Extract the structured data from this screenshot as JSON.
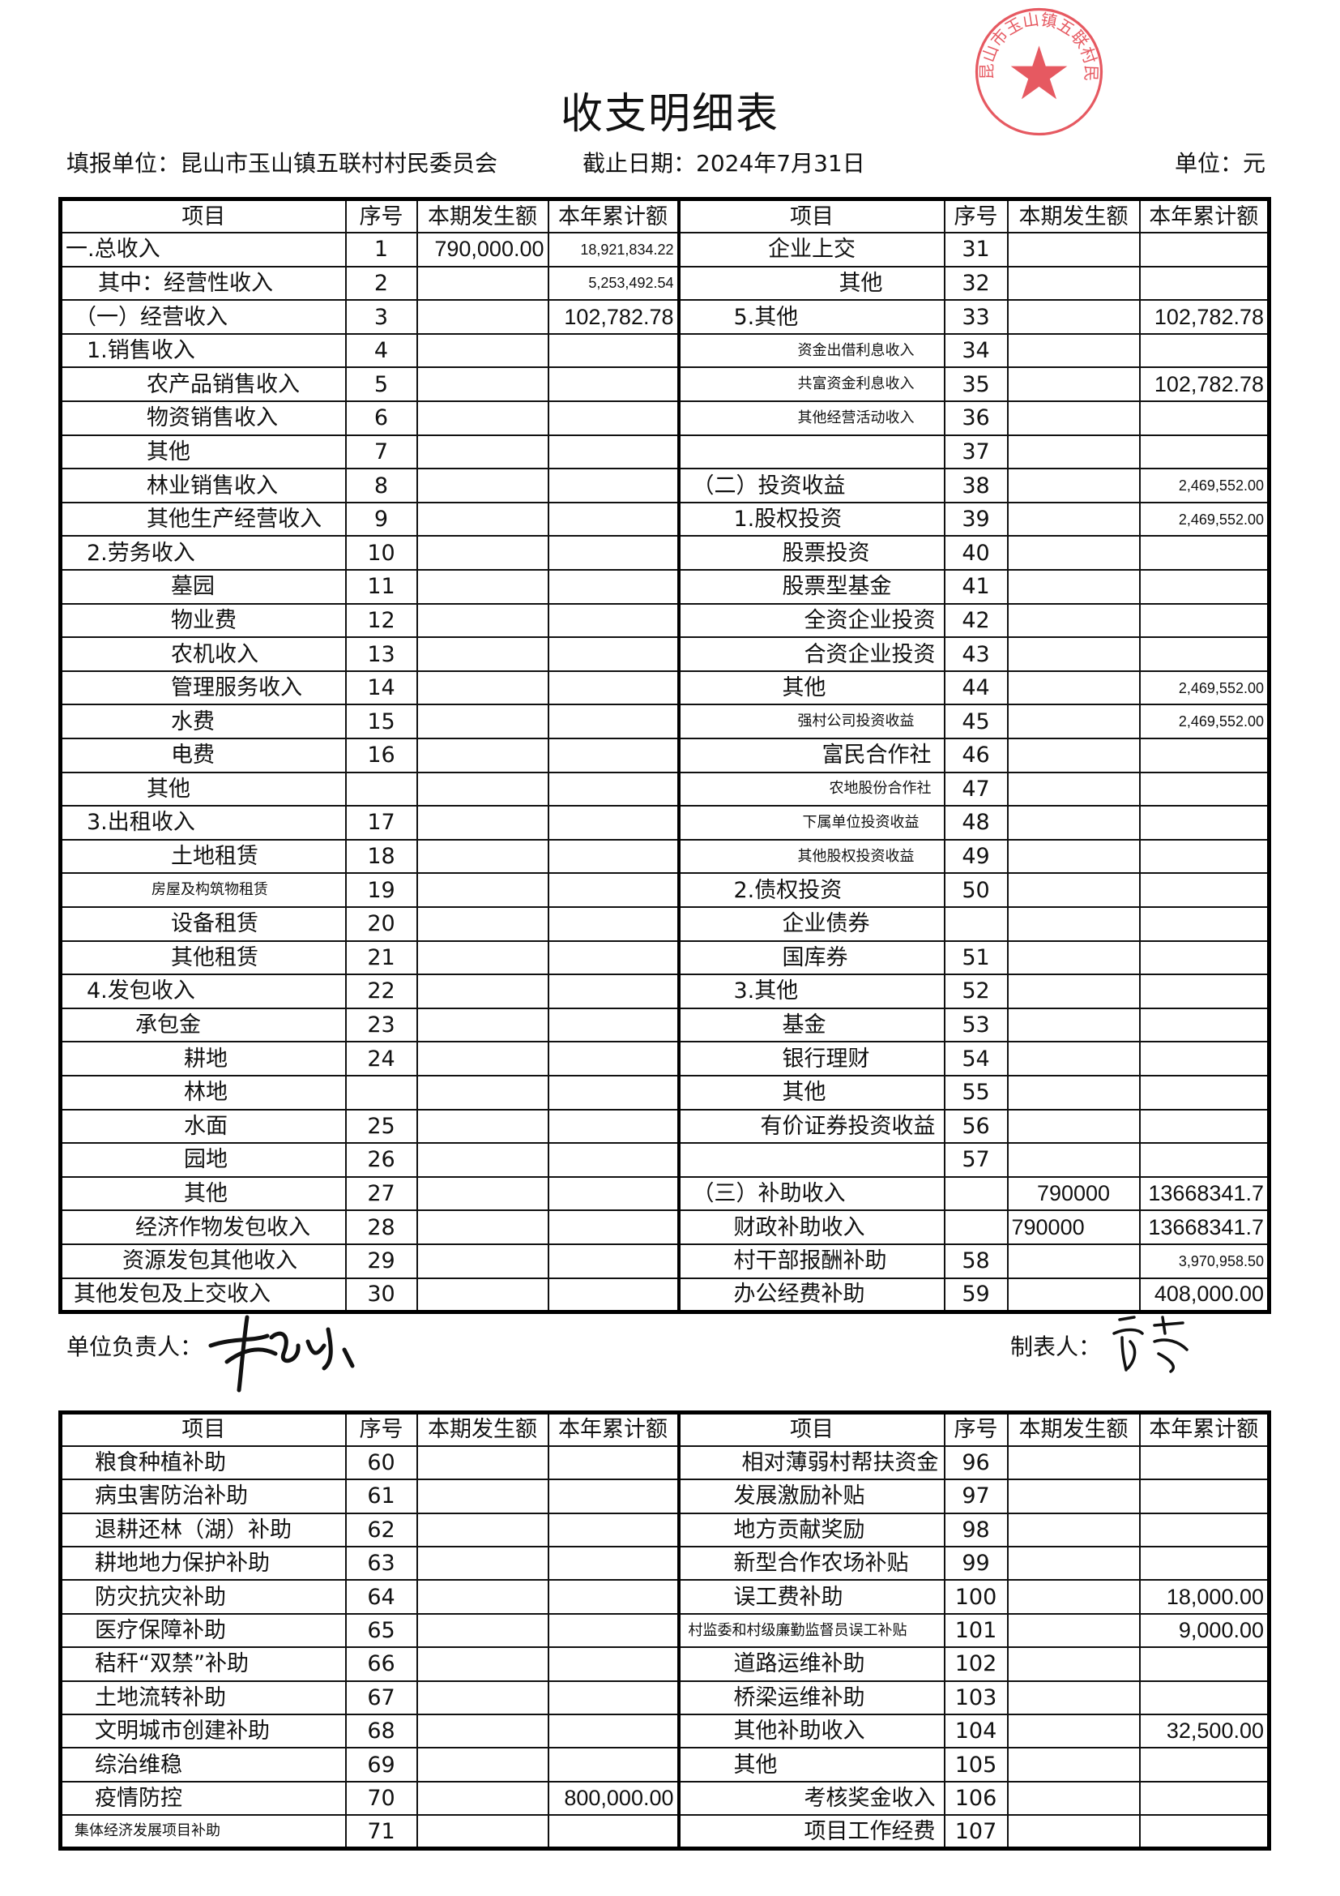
{
  "title": "收支明细表",
  "header": {
    "unit_label": "填报单位：昆山市玉山镇五联村村民委员会",
    "date_label": "截止日期：2024年7月31日",
    "currency_label": "单位：元"
  },
  "columns": [
    "项目",
    "序号",
    "本期发生额",
    "本年累计额"
  ],
  "table1": {
    "left": [
      {
        "item": "一.总收入",
        "no": "1",
        "current": "790,000.00",
        "ytd": "18,921,834.22"
      },
      {
        "item": "其中：经营性收入",
        "no": "2",
        "current": "",
        "ytd": "5,253,492.54"
      },
      {
        "item": "（一）经营收入",
        "no": "3",
        "current": "",
        "ytd": "102,782.78"
      },
      {
        "item": "1.销售收入",
        "no": "4",
        "current": "",
        "ytd": ""
      },
      {
        "item": "农产品销售收入",
        "no": "5",
        "current": "",
        "ytd": ""
      },
      {
        "item": "物资销售收入",
        "no": "6",
        "current": "",
        "ytd": ""
      },
      {
        "item": "其他",
        "no": "7",
        "current": "",
        "ytd": ""
      },
      {
        "item": "林业销售收入",
        "no": "8",
        "current": "",
        "ytd": ""
      },
      {
        "item": "其他生产经营收入",
        "no": "9",
        "current": "",
        "ytd": ""
      },
      {
        "item": "2.劳务收入",
        "no": "10",
        "current": "",
        "ytd": ""
      },
      {
        "item": "墓园",
        "no": "11",
        "current": "",
        "ytd": ""
      },
      {
        "item": "物业费",
        "no": "12",
        "current": "",
        "ytd": ""
      },
      {
        "item": "农机收入",
        "no": "13",
        "current": "",
        "ytd": ""
      },
      {
        "item": "管理服务收入",
        "no": "14",
        "current": "",
        "ytd": ""
      },
      {
        "item": "水费",
        "no": "15",
        "current": "",
        "ytd": ""
      },
      {
        "item": "电费",
        "no": "16",
        "current": "",
        "ytd": ""
      },
      {
        "item": "其他",
        "no": "",
        "current": "",
        "ytd": ""
      },
      {
        "item": "3.出租收入",
        "no": "17",
        "current": "",
        "ytd": ""
      },
      {
        "item": "土地租赁",
        "no": "18",
        "current": "",
        "ytd": ""
      },
      {
        "item": "房屋及构筑物租赁",
        "no": "19",
        "current": "",
        "ytd": ""
      },
      {
        "item": "设备租赁",
        "no": "20",
        "current": "",
        "ytd": ""
      },
      {
        "item": "其他租赁",
        "no": "21",
        "current": "",
        "ytd": ""
      },
      {
        "item": "4.发包收入",
        "no": "22",
        "current": "",
        "ytd": ""
      },
      {
        "item": "承包金",
        "no": "23",
        "current": "",
        "ytd": ""
      },
      {
        "item": "耕地",
        "no": "24",
        "current": "",
        "ytd": ""
      },
      {
        "item": "林地",
        "no": "",
        "current": "",
        "ytd": ""
      },
      {
        "item": "水面",
        "no": "25",
        "current": "",
        "ytd": ""
      },
      {
        "item": "园地",
        "no": "26",
        "current": "",
        "ytd": ""
      },
      {
        "item": "其他",
        "no": "27",
        "current": "",
        "ytd": ""
      },
      {
        "item": "经济作物发包收入",
        "no": "28",
        "current": "",
        "ytd": ""
      },
      {
        "item": "资源发包其他收入",
        "no": "29",
        "current": "",
        "ytd": ""
      },
      {
        "item": "其他发包及上交收入",
        "no": "30",
        "current": "",
        "ytd": ""
      }
    ],
    "right": [
      {
        "item": "企业上交",
        "no": "31",
        "current": "",
        "ytd": ""
      },
      {
        "item": "其他",
        "no": "32",
        "current": "",
        "ytd": ""
      },
      {
        "item": "5.其他",
        "no": "33",
        "current": "",
        "ytd": "102,782.78"
      },
      {
        "item": "资金出借利息收入",
        "no": "34",
        "current": "",
        "ytd": ""
      },
      {
        "item": "共富资金利息收入",
        "no": "35",
        "current": "",
        "ytd": "102,782.78"
      },
      {
        "item": "其他经营活动收入",
        "no": "36",
        "current": "",
        "ytd": ""
      },
      {
        "item": "",
        "no": "37",
        "current": "",
        "ytd": ""
      },
      {
        "item": "（二）投资收益",
        "no": "38",
        "current": "",
        "ytd": "2,469,552.00"
      },
      {
        "item": "1.股权投资",
        "no": "39",
        "current": "",
        "ytd": "2,469,552.00"
      },
      {
        "item": "股票投资",
        "no": "40",
        "current": "",
        "ytd": ""
      },
      {
        "item": "股票型基金",
        "no": "41",
        "current": "",
        "ytd": ""
      },
      {
        "item": "全资企业投资",
        "no": "42",
        "current": "",
        "ytd": ""
      },
      {
        "item": "合资企业投资",
        "no": "43",
        "current": "",
        "ytd": ""
      },
      {
        "item": "其他",
        "no": "44",
        "current": "",
        "ytd": "2,469,552.00"
      },
      {
        "item": "强村公司投资收益",
        "no": "45",
        "current": "",
        "ytd": "2,469,552.00"
      },
      {
        "item": "富民合作社",
        "no": "46",
        "current": "",
        "ytd": ""
      },
      {
        "item": "农地股份合作社",
        "no": "47",
        "current": "",
        "ytd": ""
      },
      {
        "item": "下属单位投资收益",
        "no": "48",
        "current": "",
        "ytd": ""
      },
      {
        "item": "其他股权投资收益",
        "no": "49",
        "current": "",
        "ytd": ""
      },
      {
        "item": "2.债权投资",
        "no": "50",
        "current": "",
        "ytd": ""
      },
      {
        "item": "企业债券",
        "no": "",
        "current": "",
        "ytd": ""
      },
      {
        "item": "国库券",
        "no": "51",
        "current": "",
        "ytd": ""
      },
      {
        "item": "3.其他",
        "no": "52",
        "current": "",
        "ytd": ""
      },
      {
        "item": "基金",
        "no": "53",
        "current": "",
        "ytd": ""
      },
      {
        "item": "银行理财",
        "no": "54",
        "current": "",
        "ytd": ""
      },
      {
        "item": "其他",
        "no": "55",
        "current": "",
        "ytd": ""
      },
      {
        "item": "有价证券投资收益",
        "no": "56",
        "current": "",
        "ytd": ""
      },
      {
        "item": "",
        "no": "57",
        "current": "",
        "ytd": ""
      },
      {
        "item": "（三）补助收入",
        "no": "",
        "current": "790000",
        "ytd": "13668341.7"
      },
      {
        "item": "财政补助收入",
        "no": "",
        "current": "790000",
        "ytd": "13668341.7"
      },
      {
        "item": "村干部报酬补助",
        "no": "58",
        "current": "",
        "ytd": "3,970,958.50"
      },
      {
        "item": "办公经费补助",
        "no": "59",
        "current": "",
        "ytd": "408,000.00"
      }
    ]
  },
  "signatures": {
    "leader_label": "单位负责人：",
    "preparer_label": "制表人："
  },
  "table2": {
    "left": [
      {
        "item": "粮食种植补助",
        "no": "60",
        "current": "",
        "ytd": ""
      },
      {
        "item": "病虫害防治补助",
        "no": "61",
        "current": "",
        "ytd": ""
      },
      {
        "item": "退耕还林（湖）补助",
        "no": "62",
        "current": "",
        "ytd": ""
      },
      {
        "item": "耕地地力保护补助",
        "no": "63",
        "current": "",
        "ytd": ""
      },
      {
        "item": "防灾抗灾补助",
        "no": "64",
        "current": "",
        "ytd": ""
      },
      {
        "item": "医疗保障补助",
        "no": "65",
        "current": "",
        "ytd": ""
      },
      {
        "item": "秸秆“双禁”补助",
        "no": "66",
        "current": "",
        "ytd": ""
      },
      {
        "item": "土地流转补助",
        "no": "67",
        "current": "",
        "ytd": ""
      },
      {
        "item": "文明城市创建补助",
        "no": "68",
        "current": "",
        "ytd": ""
      },
      {
        "item": "综治维稳",
        "no": "69",
        "current": "",
        "ytd": ""
      },
      {
        "item": "疫情防控",
        "no": "70",
        "current": "",
        "ytd": "800,000.00"
      },
      {
        "item": "集体经济发展项目补助",
        "no": "71",
        "current": "",
        "ytd": ""
      }
    ],
    "right": [
      {
        "item": "相对薄弱村帮扶资金",
        "no": "96",
        "current": "",
        "ytd": ""
      },
      {
        "item": "发展激励补贴",
        "no": "97",
        "current": "",
        "ytd": ""
      },
      {
        "item": "地方贡献奖励",
        "no": "98",
        "current": "",
        "ytd": ""
      },
      {
        "item": "新型合作农场补贴",
        "no": "99",
        "current": "",
        "ytd": ""
      },
      {
        "item": "误工费补助",
        "no": "100",
        "current": "",
        "ytd": "18,000.00"
      },
      {
        "item": "村监委和村级廉勤监督员误工补贴",
        "no": "101",
        "current": "",
        "ytd": "9,000.00"
      },
      {
        "item": "道路运维补助",
        "no": "102",
        "current": "",
        "ytd": ""
      },
      {
        "item": "桥梁运维补助",
        "no": "103",
        "current": "",
        "ytd": ""
      },
      {
        "item": "其他补助收入",
        "no": "104",
        "current": "",
        "ytd": "32,500.00"
      },
      {
        "item": "其他",
        "no": "105",
        "current": "",
        "ytd": ""
      },
      {
        "item": "考核奖金收入",
        "no": "106",
        "current": "",
        "ytd": ""
      },
      {
        "item": "项目工作经费",
        "no": "107",
        "current": "",
        "ytd": ""
      }
    ]
  },
  "stamp": {
    "text": "昆山市玉山镇五联村民委员会",
    "color": "#e0303a"
  }
}
